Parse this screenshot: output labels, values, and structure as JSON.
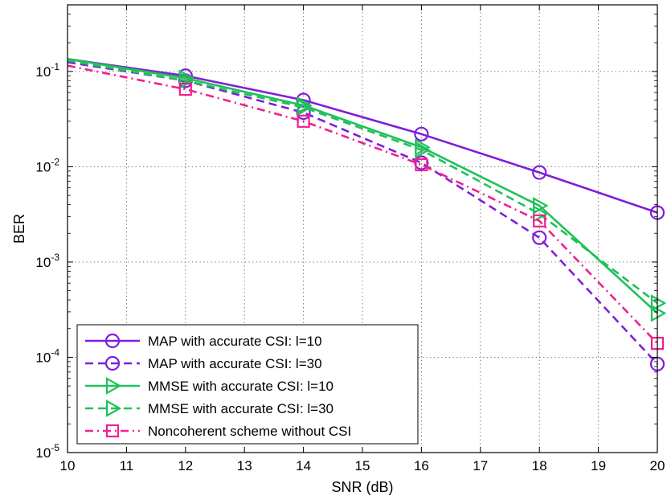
{
  "chart_data": {
    "type": "line",
    "title": "",
    "xlabel": "SNR (dB)",
    "ylabel": "BER",
    "xlim": [
      10,
      20
    ],
    "ylim": [
      1e-05,
      0.5
    ],
    "yscale": "log",
    "grid": true,
    "legend_position": "bottom-left",
    "x_ticks": [
      10,
      11,
      12,
      13,
      14,
      15,
      16,
      17,
      18,
      19,
      20
    ],
    "y_ticks": [
      {
        "value": 1e-05,
        "base": "10",
        "exp": "-5"
      },
      {
        "value": 0.0001,
        "base": "10",
        "exp": "-4"
      },
      {
        "value": 0.001,
        "base": "10",
        "exp": "-3"
      },
      {
        "value": 0.01,
        "base": "10",
        "exp": "-2"
      },
      {
        "value": 0.1,
        "base": "10",
        "exp": "-1"
      }
    ],
    "series": [
      {
        "name": "MAP with accurate CSI: l=10",
        "color": "#7f1fd9",
        "dash": "solid",
        "marker": "circle",
        "x": [
          10,
          12,
          14,
          16,
          18,
          20
        ],
        "y": [
          0.135,
          0.09,
          0.05,
          0.022,
          0.0087,
          0.0033
        ]
      },
      {
        "name": "MAP with accurate CSI: l=30",
        "color": "#7f1fd9",
        "dash": "dashed",
        "marker": "circle",
        "x": [
          10,
          12,
          14,
          16,
          18,
          20
        ],
        "y": [
          0.125,
          0.08,
          0.037,
          0.011,
          0.0018,
          8.5e-05
        ]
      },
      {
        "name": "MMSE with accurate CSI: l=10",
        "color": "#1fc15a",
        "dash": "solid",
        "marker": "triangle-right",
        "x": [
          10,
          12,
          14,
          16,
          18,
          20
        ],
        "y": [
          0.135,
          0.085,
          0.044,
          0.016,
          0.0039,
          0.00029
        ]
      },
      {
        "name": "MMSE with accurate CSI: l=30",
        "color": "#1fc15a",
        "dash": "dashed",
        "marker": "triangle-right",
        "x": [
          10,
          12,
          14,
          16,
          18,
          20
        ],
        "y": [
          0.13,
          0.08,
          0.042,
          0.015,
          0.0032,
          0.00037
        ]
      },
      {
        "name": "Noncoherent scheme without CSI",
        "color": "#f0208e",
        "dash": "dashdot",
        "marker": "square",
        "x": [
          10,
          12,
          14,
          16,
          18,
          20
        ],
        "y": [
          0.115,
          0.065,
          0.03,
          0.0105,
          0.0027,
          0.00014
        ]
      }
    ]
  }
}
